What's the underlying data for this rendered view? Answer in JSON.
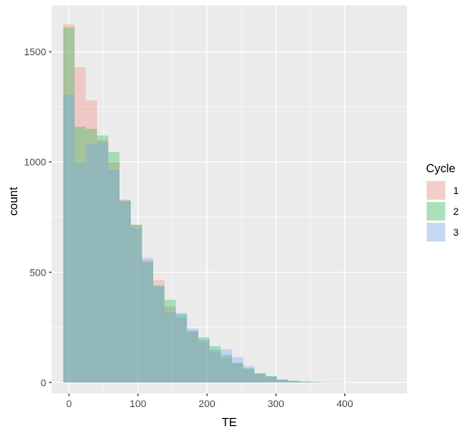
{
  "chart_data": {
    "type": "bar",
    "subtype": "overlapping histogram",
    "xlabel": "TE",
    "ylabel": "count",
    "xlim": [
      -25,
      490
    ],
    "ylim": [
      -50,
      1710
    ],
    "xticks": [
      0,
      100,
      200,
      300,
      400
    ],
    "yticks": [
      0,
      500,
      1000,
      1500
    ],
    "grid": true,
    "legend": {
      "title": "Cycle",
      "placement": "right"
    },
    "bin_width": 16.3,
    "bin_starts": [
      -8.15,
      8.15,
      24.45,
      40.75,
      57.05,
      73.35,
      89.65,
      105.95,
      122.25,
      138.55,
      154.85,
      171.15,
      187.45,
      203.75,
      220.05,
      236.35,
      252.65,
      268.95,
      285.25,
      301.55,
      317.85,
      334.15,
      350.45,
      366.75,
      383.05,
      399.35,
      415.65,
      431.95,
      448.25
    ],
    "series": [
      {
        "name": "1",
        "color": "#F8766D",
        "values": [
          1625,
          1430,
          1280,
          1100,
          1000,
          830,
          715,
          555,
          465,
          345,
          295,
          230,
          185,
          140,
          110,
          85,
          60,
          40,
          25,
          12,
          6,
          3,
          2,
          1,
          1,
          0,
          0,
          0,
          0
        ]
      },
      {
        "name": "2",
        "color": "#00BA38",
        "values": [
          1610,
          1160,
          1150,
          1120,
          1045,
          825,
          715,
          545,
          440,
          375,
          310,
          235,
          205,
          165,
          125,
          90,
          65,
          42,
          28,
          14,
          8,
          4,
          2,
          1,
          1,
          0,
          0,
          0,
          0
        ]
      },
      {
        "name": "3",
        "color": "#619CFF",
        "values": [
          1305,
          1000,
          1080,
          1090,
          965,
          820,
          700,
          565,
          435,
          320,
          315,
          245,
          195,
          150,
          150,
          115,
          75,
          40,
          30,
          12,
          8,
          5,
          2,
          1,
          1,
          0,
          0,
          0,
          0
        ]
      }
    ]
  }
}
